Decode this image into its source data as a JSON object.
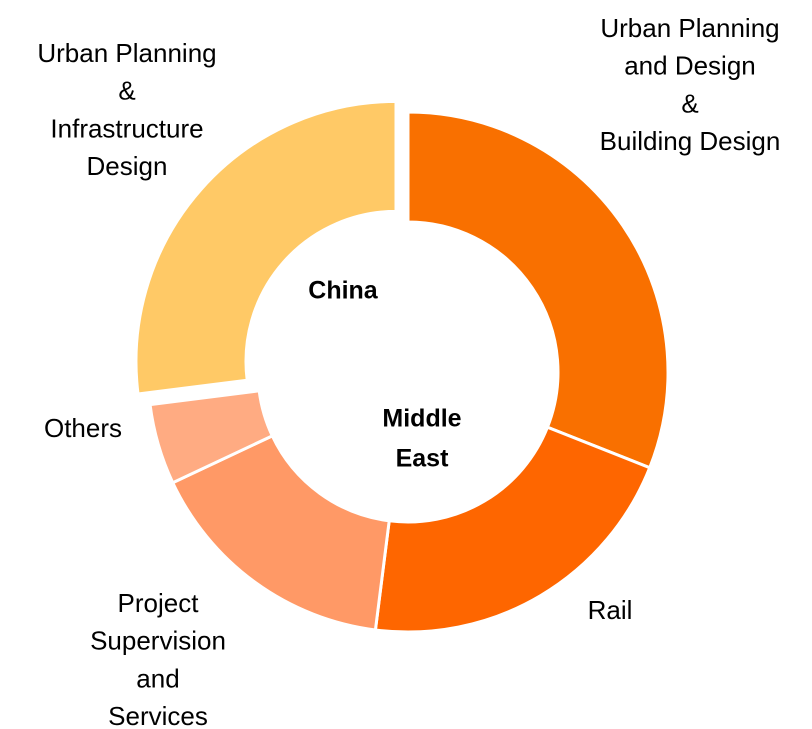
{
  "chart_data": {
    "type": "donut",
    "categories": [
      [
        "Urban Planning",
        "and Design",
        "&",
        "Building Design"
      ],
      [
        "Rail"
      ],
      [
        "Project",
        "Supervision",
        "and",
        "Services"
      ],
      [
        "Others"
      ],
      [
        "Urban Planning",
        "&",
        "Infrastructure",
        "Design"
      ]
    ],
    "values": [
      31,
      21,
      16,
      5,
      27
    ],
    "colors": [
      "#f97000",
      "#fe6600",
      "#ff9966",
      "#ffab82",
      "#ffc966"
    ],
    "exploded_slice": 4,
    "annotations": [
      [
        "China"
      ],
      [
        "Middle",
        "East"
      ]
    ]
  }
}
